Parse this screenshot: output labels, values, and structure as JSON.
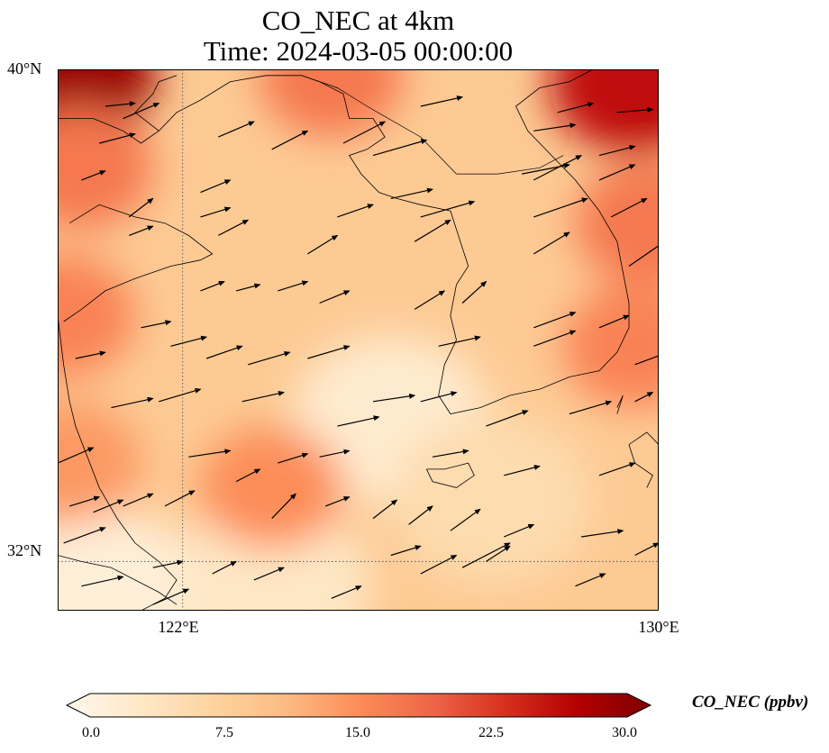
{
  "title": {
    "line1": "CO_NEC at 4km",
    "line2": "Time: 2024-03-05 00:00:00"
  },
  "axes": {
    "lat_labels": [
      "40°N",
      "32°N"
    ],
    "lon_labels": [
      "122°E",
      "130°E"
    ],
    "lat_range": [
      31.2,
      40.0
    ],
    "lon_range": [
      119.9,
      130.0
    ],
    "gridlines": {
      "lat": [
        32.0
      ],
      "lon": [
        122.0
      ],
      "style": "dotted"
    }
  },
  "colorbar": {
    "label": "CO_NEC (ppbv)",
    "ticks": [
      "0.0",
      "7.5",
      "15.0",
      "22.5",
      "30.0"
    ],
    "min": 0,
    "max": 30,
    "colormap": "OrRd",
    "extend": "both",
    "stops": [
      "#fff7ec",
      "#fee8c8",
      "#fdd49e",
      "#fdbb84",
      "#fc8d59",
      "#ef6548",
      "#d7301f",
      "#b30000",
      "#7f0000"
    ]
  },
  "field": {
    "description_units": "ppbv",
    "hotspots": [
      {
        "lon": 120.1,
        "lat": 39.9,
        "value": 28
      },
      {
        "lon": 129.6,
        "lat": 39.8,
        "value": 25
      },
      {
        "lon": 129.8,
        "lat": 37.5,
        "value": 17
      },
      {
        "lon": 129.6,
        "lat": 35.5,
        "value": 16
      },
      {
        "lon": 120.3,
        "lat": 38.4,
        "value": 17
      },
      {
        "lon": 124.5,
        "lat": 39.9,
        "value": 17
      },
      {
        "lon": 120.0,
        "lat": 36.0,
        "value": 16
      },
      {
        "lon": 123.5,
        "lat": 33.2,
        "value": 15
      },
      {
        "lon": 120.1,
        "lat": 33.6,
        "value": 14
      }
    ],
    "background_value": 9,
    "lowspots": [
      {
        "lon": 125.5,
        "lat": 34.3,
        "value": 3
      },
      {
        "lon": 120.8,
        "lat": 31.4,
        "value": 2
      },
      {
        "lon": 127.2,
        "lat": 33.0,
        "value": 6
      },
      {
        "lon": 123.5,
        "lat": 31.6,
        "value": 4
      }
    ]
  },
  "wind_arrows": [
    [
      120.7,
      39.4,
      0.5,
      0.05
    ],
    [
      120.6,
      38.8,
      0.6,
      0.15
    ],
    [
      122.6,
      38.9,
      0.6,
      0.25
    ],
    [
      124.7,
      38.8,
      0.7,
      0.35
    ],
    [
      126.0,
      39.4,
      0.7,
      0.15
    ],
    [
      127.9,
      39.0,
      0.7,
      0.1
    ],
    [
      128.3,
      39.3,
      0.6,
      0.15
    ],
    [
      129.3,
      39.3,
      0.6,
      0.05
    ],
    [
      121.0,
      39.2,
      0.6,
      0.25
    ],
    [
      123.5,
      38.7,
      0.6,
      0.3
    ],
    [
      125.2,
      38.6,
      0.9,
      0.25
    ],
    [
      127.7,
      38.3,
      0.8,
      0.15
    ],
    [
      129.0,
      38.6,
      0.6,
      0.15
    ],
    [
      120.3,
      38.2,
      0.4,
      0.15
    ],
    [
      122.3,
      38.0,
      0.5,
      0.2
    ],
    [
      125.5,
      37.9,
      0.7,
      0.15
    ],
    [
      127.9,
      38.2,
      0.8,
      0.4
    ],
    [
      129.0,
      38.2,
      0.6,
      0.25
    ],
    [
      121.1,
      37.6,
      0.4,
      0.3
    ],
    [
      122.3,
      37.6,
      0.5,
      0.15
    ],
    [
      124.6,
      37.6,
      0.6,
      0.2
    ],
    [
      126.0,
      37.6,
      0.9,
      0.25
    ],
    [
      127.9,
      37.6,
      0.9,
      0.3
    ],
    [
      129.2,
      37.6,
      0.6,
      0.3
    ],
    [
      121.1,
      37.3,
      0.4,
      0.15
    ],
    [
      122.6,
      37.3,
      0.5,
      0.25
    ],
    [
      124.1,
      37.0,
      0.5,
      0.3
    ],
    [
      125.9,
      37.2,
      0.6,
      0.35
    ],
    [
      127.9,
      37.0,
      0.6,
      0.35
    ],
    [
      129.5,
      36.8,
      0.6,
      0.4
    ],
    [
      122.3,
      36.4,
      0.4,
      0.15
    ],
    [
      122.9,
      36.4,
      0.4,
      0.1
    ],
    [
      123.6,
      36.4,
      0.5,
      0.15
    ],
    [
      124.3,
      36.2,
      0.5,
      0.2
    ],
    [
      125.9,
      36.1,
      0.5,
      0.3
    ],
    [
      126.7,
      36.2,
      0.4,
      0.35
    ],
    [
      127.9,
      35.8,
      0.7,
      0.25
    ],
    [
      129.0,
      35.8,
      0.5,
      0.2
    ],
    [
      121.3,
      35.8,
      0.5,
      0.1
    ],
    [
      121.8,
      35.5,
      0.6,
      0.15
    ],
    [
      122.4,
      35.3,
      0.6,
      0.2
    ],
    [
      123.1,
      35.2,
      0.7,
      0.2
    ],
    [
      124.1,
      35.3,
      0.7,
      0.2
    ],
    [
      126.3,
      35.5,
      0.7,
      0.15
    ],
    [
      127.9,
      35.5,
      0.7,
      0.25
    ],
    [
      129.6,
      35.2,
      0.7,
      0.25
    ],
    [
      120.2,
      35.3,
      0.5,
      0.1
    ],
    [
      120.8,
      34.5,
      0.7,
      0.15
    ],
    [
      121.6,
      34.6,
      0.7,
      0.2
    ],
    [
      123.0,
      34.6,
      0.7,
      0.15
    ],
    [
      124.6,
      34.2,
      0.7,
      0.15
    ],
    [
      125.2,
      34.6,
      0.7,
      0.1
    ],
    [
      126.0,
      34.6,
      0.6,
      0.15
    ],
    [
      127.1,
      34.2,
      0.7,
      0.25
    ],
    [
      128.5,
      34.4,
      0.7,
      0.2
    ],
    [
      129.6,
      34.6,
      0.3,
      0.15
    ],
    [
      122.1,
      33.7,
      0.7,
      0.1
    ],
    [
      122.9,
      33.3,
      0.4,
      0.2
    ],
    [
      123.6,
      33.6,
      0.5,
      0.15
    ],
    [
      124.3,
      33.7,
      0.5,
      0.1
    ],
    [
      126.2,
      33.7,
      0.6,
      0.1
    ],
    [
      127.4,
      33.4,
      0.6,
      0.15
    ],
    [
      129.0,
      33.4,
      0.6,
      0.2
    ],
    [
      119.9,
      33.6,
      0.6,
      0.25
    ],
    [
      120.1,
      32.9,
      0.5,
      0.15
    ],
    [
      120.5,
      32.8,
      0.5,
      0.2
    ],
    [
      121.0,
      32.9,
      0.5,
      0.2
    ],
    [
      121.7,
      32.9,
      0.5,
      0.25
    ],
    [
      123.5,
      32.7,
      0.4,
      0.4
    ],
    [
      124.4,
      32.9,
      0.4,
      0.15
    ],
    [
      125.2,
      32.7,
      0.4,
      0.3
    ],
    [
      125.8,
      32.6,
      0.4,
      0.3
    ],
    [
      126.5,
      32.5,
      0.5,
      0.35
    ],
    [
      127.4,
      32.4,
      0.5,
      0.2
    ],
    [
      128.7,
      32.4,
      0.7,
      0.1
    ],
    [
      129.6,
      32.1,
      0.4,
      0.2
    ],
    [
      120.0,
      32.3,
      0.7,
      0.25
    ],
    [
      121.5,
      31.9,
      0.5,
      0.1
    ],
    [
      122.5,
      31.8,
      0.4,
      0.2
    ],
    [
      123.2,
      31.7,
      0.5,
      0.2
    ],
    [
      126.0,
      31.8,
      0.6,
      0.3
    ],
    [
      126.7,
      31.9,
      0.8,
      0.4
    ],
    [
      128.6,
      31.6,
      0.5,
      0.2
    ],
    [
      120.3,
      31.6,
      0.7,
      0.15
    ],
    [
      121.5,
      31.3,
      0.6,
      0.25
    ],
    [
      124.5,
      31.4,
      0.5,
      0.2
    ],
    [
      125.5,
      32.1,
      0.5,
      0.15
    ],
    [
      127.1,
      32.0,
      0.4,
      0.25
    ]
  ],
  "coastlines": [
    [
      [
        120.1,
        37.5
      ],
      [
        120.6,
        37.8
      ],
      [
        121.2,
        37.6
      ],
      [
        121.7,
        37.5
      ],
      [
        122.1,
        37.3
      ],
      [
        122.5,
        37.0
      ],
      [
        122.3,
        36.9
      ],
      [
        121.8,
        36.8
      ],
      [
        121.2,
        36.6
      ],
      [
        120.7,
        36.4
      ],
      [
        120.3,
        36.1
      ],
      [
        120.0,
        35.9
      ]
    ],
    [
      [
        119.9,
        39.2
      ],
      [
        120.5,
        39.2
      ],
      [
        121.0,
        39.0
      ],
      [
        121.3,
        38.8
      ],
      [
        121.6,
        39.0
      ],
      [
        121.9,
        39.3
      ],
      [
        122.3,
        39.5
      ],
      [
        122.8,
        39.8
      ],
      [
        123.4,
        39.9
      ],
      [
        124.0,
        39.9
      ]
    ],
    [
      [
        121.6,
        39.0
      ],
      [
        121.2,
        39.3
      ],
      [
        121.5,
        39.6
      ],
      [
        121.6,
        39.8
      ],
      [
        121.9,
        39.9
      ]
    ],
    [
      [
        124.0,
        39.9
      ],
      [
        124.3,
        39.8
      ],
      [
        124.7,
        39.6
      ],
      [
        124.8,
        39.2
      ],
      [
        125.2,
        39.2
      ],
      [
        125.4,
        38.9
      ],
      [
        125.1,
        38.7
      ],
      [
        124.8,
        38.6
      ],
      [
        125.0,
        38.3
      ],
      [
        125.3,
        38.0
      ],
      [
        125.6,
        37.9
      ],
      [
        126.0,
        37.8
      ],
      [
        126.5,
        37.7
      ],
      [
        126.6,
        37.4
      ],
      [
        126.7,
        37.1
      ],
      [
        126.8,
        36.8
      ],
      [
        126.6,
        36.5
      ],
      [
        126.5,
        36.0
      ],
      [
        126.6,
        35.6
      ],
      [
        126.4,
        35.2
      ],
      [
        126.3,
        34.7
      ],
      [
        126.5,
        34.4
      ],
      [
        127.0,
        34.5
      ],
      [
        127.5,
        34.7
      ],
      [
        128.0,
        34.8
      ],
      [
        128.5,
        35.0
      ],
      [
        129.0,
        35.1
      ],
      [
        129.3,
        35.4
      ],
      [
        129.5,
        35.8
      ],
      [
        129.5,
        36.2
      ],
      [
        129.4,
        36.7
      ],
      [
        129.3,
        37.2
      ],
      [
        129.0,
        37.7
      ],
      [
        128.6,
        38.2
      ],
      [
        128.2,
        38.6
      ],
      [
        127.8,
        39.0
      ],
      [
        127.6,
        39.4
      ],
      [
        128.0,
        39.7
      ],
      [
        128.5,
        39.8
      ],
      [
        128.9,
        40.0
      ]
    ],
    [
      [
        126.1,
        33.5
      ],
      [
        126.4,
        33.5
      ],
      [
        126.8,
        33.6
      ],
      [
        126.9,
        33.4
      ],
      [
        126.6,
        33.2
      ],
      [
        126.2,
        33.3
      ],
      [
        126.1,
        33.5
      ]
    ],
    [
      [
        119.9,
        36.0
      ],
      [
        120.0,
        35.2
      ],
      [
        120.1,
        34.6
      ],
      [
        120.2,
        34.2
      ],
      [
        120.4,
        33.7
      ],
      [
        120.6,
        33.2
      ],
      [
        120.9,
        32.7
      ],
      [
        121.2,
        32.3
      ],
      [
        121.6,
        32.0
      ],
      [
        121.9,
        31.7
      ],
      [
        121.7,
        31.4
      ],
      [
        121.3,
        31.2
      ]
    ],
    [
      [
        119.9,
        32.1
      ],
      [
        120.3,
        32.0
      ],
      [
        120.8,
        31.9
      ],
      [
        121.2,
        31.7
      ],
      [
        121.6,
        31.5
      ],
      [
        121.9,
        31.3
      ]
    ],
    [
      [
        129.8,
        33.2
      ],
      [
        129.9,
        33.4
      ],
      [
        129.6,
        33.6
      ],
      [
        129.5,
        33.9
      ],
      [
        129.8,
        34.1
      ],
      [
        130.0,
        33.9
      ]
    ],
    [
      [
        129.3,
        34.4
      ],
      [
        129.4,
        34.7
      ],
      [
        129.3,
        34.5
      ]
    ]
  ],
  "border_line": [
    [
      124.0,
      39.9
    ],
    [
      124.6,
      39.7
    ],
    [
      125.1,
      39.4
    ],
    [
      126.0,
      38.9
    ],
    [
      126.6,
      38.3
    ],
    [
      127.3,
      38.3
    ],
    [
      128.0,
      38.4
    ],
    [
      128.4,
      38.6
    ]
  ]
}
